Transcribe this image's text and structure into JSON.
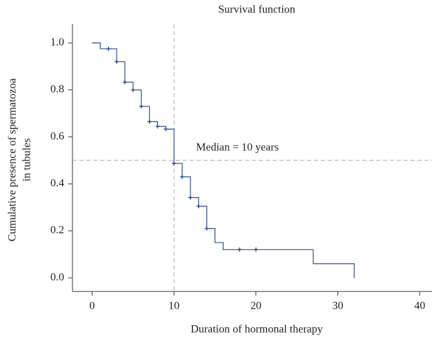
{
  "chart_data": {
    "type": "survival",
    "title": "Survival function",
    "x_label": "Duration of hormonal therapy",
    "y_label": [
      "Cumulative presence of spermatozoa",
      "in tubules"
    ],
    "annotation": "Median = 10 years",
    "reference_lines": {
      "x": 10,
      "y": 0.5,
      "color": "#aaaaaa"
    },
    "series": [
      {
        "color": "#2e4d8f",
        "x": [
          0,
          1,
          3,
          4,
          5,
          6,
          7,
          8,
          9,
          10,
          11,
          12,
          13,
          14,
          15,
          16,
          27,
          32
        ],
        "values": [
          1.0,
          0.975,
          0.92,
          0.833,
          0.8,
          0.73,
          0.665,
          0.645,
          0.633,
          0.487,
          0.43,
          0.342,
          0.305,
          0.21,
          0.15,
          0.12,
          0.06,
          0.0
        ],
        "censored_x": [
          2,
          3,
          4,
          5,
          6,
          7,
          8,
          9,
          10,
          11,
          12,
          13,
          14,
          18,
          20
        ],
        "censored_values": [
          0.975,
          0.92,
          0.833,
          0.8,
          0.73,
          0.665,
          0.645,
          0.633,
          0.487,
          0.43,
          0.342,
          0.305,
          0.21,
          0.12,
          0.12
        ]
      }
    ],
    "xlim": [
      -2.4,
      41.5
    ],
    "ylim": [
      -0.058,
      1.08
    ],
    "xticks": [
      0,
      10,
      20,
      30,
      40
    ],
    "yticks": [
      {
        "value": 0,
        "label": "0.0"
      },
      {
        "value": 0.2,
        "label": "0.2"
      },
      {
        "value": 0.4,
        "label": "0.4"
      },
      {
        "value": 0.6,
        "label": "0.6"
      },
      {
        "value": 0.8,
        "label": "0.8"
      },
      {
        "value": 1,
        "label": "1.0"
      }
    ]
  }
}
